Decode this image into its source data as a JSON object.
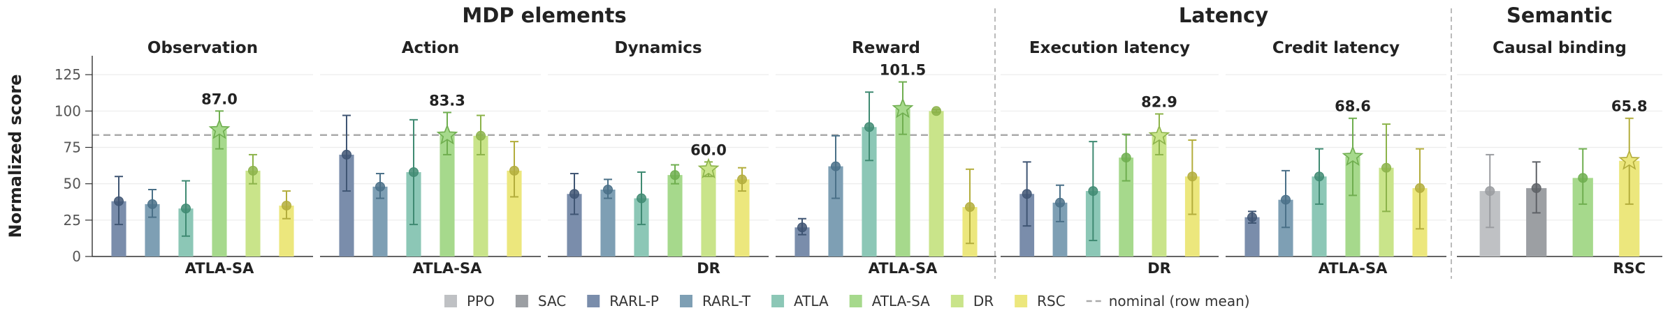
{
  "figure": {
    "ylabel": "Normalized score",
    "yticks": [
      0,
      25,
      50,
      75,
      100,
      125
    ],
    "ylim": [
      0,
      138
    ],
    "groups": [
      {
        "title": "MDP elements",
        "panels": [
          0,
          1,
          2,
          3
        ]
      },
      {
        "title": "Latency",
        "panels": [
          4,
          5
        ]
      },
      {
        "title": "Semantic",
        "panels": [
          6
        ]
      }
    ],
    "legend": [
      {
        "label": "PPO",
        "key": "PPO"
      },
      {
        "label": "SAC",
        "key": "SAC"
      },
      {
        "label": "RARL-P",
        "key": "RARL-P"
      },
      {
        "label": "RARL-T",
        "key": "RARL-T"
      },
      {
        "label": "ATLA",
        "key": "ATLA"
      },
      {
        "label": "ATLA-SA",
        "key": "ATLA-SA"
      },
      {
        "label": "DR",
        "key": "DR"
      },
      {
        "label": "RSC",
        "key": "RSC"
      },
      {
        "label": "nominal (row mean)",
        "key": "nominal"
      }
    ],
    "colors": {
      "PPO": "#bfc1c4",
      "SAC": "#9c9fa3",
      "RARL-P": "#7a8dab",
      "RARL-T": "#7e9fb4",
      "ATLA": "#8cc7b6",
      "ATLA-SA": "#a6d98c",
      "DR": "#c9e48a",
      "RSC": "#ece77d",
      "nominal": "#aaaaaa"
    },
    "marker_colors": {
      "PPO": "#9a9ca0",
      "SAC": "#5e6166",
      "RARL-P": "#3f5573",
      "RARL-T": "#4a7088",
      "ATLA": "#3f8a72",
      "ATLA-SA": "#6fae4f",
      "DR": "#8cb34a",
      "RSC": "#b3ad3c"
    }
  },
  "chart_data": [
    {
      "type": "bar",
      "title": "Observation",
      "best_label": "ATLA-SA",
      "best_value_label": "87.0",
      "nominal": 83.5,
      "series": [
        {
          "name": "RARL-P",
          "value": 38,
          "err": [
            22,
            55
          ]
        },
        {
          "name": "RARL-T",
          "value": 36,
          "err": [
            27,
            46
          ]
        },
        {
          "name": "ATLA",
          "value": 33,
          "err": [
            14,
            52
          ]
        },
        {
          "name": "ATLA-SA",
          "value": 87.0,
          "err": [
            74,
            100
          ],
          "best": true
        },
        {
          "name": "DR",
          "value": 59,
          "err": [
            50,
            70
          ]
        },
        {
          "name": "RSC",
          "value": 35,
          "err": [
            26,
            45
          ]
        }
      ]
    },
    {
      "type": "bar",
      "title": "Action",
      "best_label": "ATLA-SA",
      "best_value_label": "83.3",
      "nominal": 83.5,
      "series": [
        {
          "name": "RARL-P",
          "value": 70,
          "err": [
            45,
            97
          ]
        },
        {
          "name": "RARL-T",
          "value": 48,
          "err": [
            40,
            57
          ]
        },
        {
          "name": "ATLA",
          "value": 58,
          "err": [
            22,
            94
          ]
        },
        {
          "name": "ATLA-SA",
          "value": 83.3,
          "err": [
            70,
            99
          ],
          "best": true
        },
        {
          "name": "DR",
          "value": 83,
          "err": [
            70,
            97
          ]
        },
        {
          "name": "RSC",
          "value": 59,
          "err": [
            41,
            79
          ]
        }
      ]
    },
    {
      "type": "bar",
      "title": "Dynamics",
      "best_label": "DR",
      "best_value_label": "60.0",
      "nominal": 83.5,
      "series": [
        {
          "name": "RARL-P",
          "value": 43,
          "err": [
            29,
            57
          ]
        },
        {
          "name": "RARL-T",
          "value": 46,
          "err": [
            40,
            53
          ]
        },
        {
          "name": "ATLA",
          "value": 40,
          "err": [
            22,
            58
          ]
        },
        {
          "name": "ATLA-SA",
          "value": 56,
          "err": [
            50,
            63
          ]
        },
        {
          "name": "DR",
          "value": 60.0,
          "err": [
            55,
            65
          ],
          "best": true
        },
        {
          "name": "RSC",
          "value": 53,
          "err": [
            45,
            61
          ]
        }
      ]
    },
    {
      "type": "bar",
      "title": "Reward",
      "best_label": "ATLA-SA",
      "best_value_label": "101.5",
      "nominal": 83.5,
      "series": [
        {
          "name": "RARL-P",
          "value": 20,
          "err": [
            15,
            26
          ]
        },
        {
          "name": "RARL-T",
          "value": 62,
          "err": [
            40,
            83
          ]
        },
        {
          "name": "ATLA",
          "value": 89,
          "err": [
            66,
            113
          ]
        },
        {
          "name": "ATLA-SA",
          "value": 101.5,
          "err": [
            84,
            120
          ],
          "best": true
        },
        {
          "name": "DR",
          "value": 100,
          "err": [
            99,
            101
          ]
        },
        {
          "name": "RSC",
          "value": 34,
          "err": [
            9,
            60
          ]
        }
      ]
    },
    {
      "type": "bar",
      "title": "Execution latency",
      "best_label": "DR",
      "best_value_label": "82.9",
      "nominal": 83.5,
      "series": [
        {
          "name": "RARL-P",
          "value": 43,
          "err": [
            21,
            65
          ]
        },
        {
          "name": "RARL-T",
          "value": 37,
          "err": [
            24,
            49
          ]
        },
        {
          "name": "ATLA",
          "value": 45,
          "err": [
            11,
            79
          ]
        },
        {
          "name": "ATLA-SA",
          "value": 68,
          "err": [
            52,
            84
          ]
        },
        {
          "name": "DR",
          "value": 82.9,
          "err": [
            70,
            98
          ],
          "best": true
        },
        {
          "name": "RSC",
          "value": 55,
          "err": [
            29,
            80
          ]
        }
      ]
    },
    {
      "type": "bar",
      "title": "Credit latency",
      "best_label": "ATLA-SA",
      "best_value_label": "68.6",
      "nominal": 83.5,
      "series": [
        {
          "name": "RARL-P",
          "value": 27,
          "err": [
            23,
            31
          ]
        },
        {
          "name": "RARL-T",
          "value": 39,
          "err": [
            20,
            59
          ]
        },
        {
          "name": "ATLA",
          "value": 55,
          "err": [
            36,
            74
          ]
        },
        {
          "name": "ATLA-SA",
          "value": 68.6,
          "err": [
            42,
            95
          ],
          "best": true
        },
        {
          "name": "DR",
          "value": 61,
          "err": [
            31,
            91
          ]
        },
        {
          "name": "RSC",
          "value": 47,
          "err": [
            19,
            74
          ]
        }
      ]
    },
    {
      "type": "bar",
      "title": "Causal binding",
      "best_label": "RSC",
      "best_value_label": "65.8",
      "nominal": null,
      "series": [
        {
          "name": "PPO",
          "value": 45,
          "err": [
            20,
            70
          ]
        },
        {
          "name": "SAC",
          "value": 47,
          "err": [
            30,
            65
          ]
        },
        {
          "name": "ATLA-SA",
          "value": 54,
          "err": [
            36,
            74
          ]
        },
        {
          "name": "RSC",
          "value": 65.8,
          "err": [
            36,
            95
          ],
          "best": true
        }
      ]
    }
  ]
}
